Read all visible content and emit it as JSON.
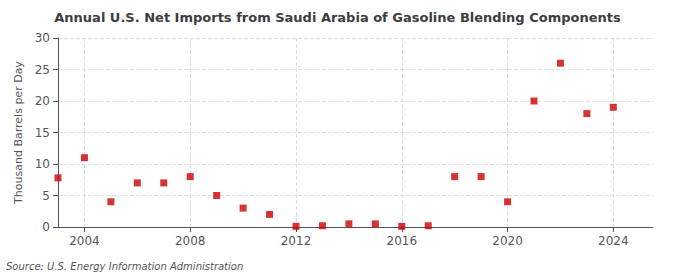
{
  "chart_data": {
    "type": "scatter",
    "title": "Annual U.S. Net Imports from Saudi Arabia of Gasoline Blending Components",
    "ylabel": "Thousand Barrels per Day",
    "annotation": "Source: U.S. Energy Information Administration",
    "x": [
      2003,
      2004,
      2005,
      2006,
      2007,
      2008,
      2009,
      2010,
      2011,
      2012,
      2013,
      2014,
      2015,
      2016,
      2017,
      2018,
      2019,
      2020,
      2021,
      2022,
      2023,
      2024
    ],
    "values": [
      7.8,
      11.0,
      4.0,
      7.0,
      7.0,
      8.0,
      5.0,
      3.0,
      2.0,
      0.1,
      0.2,
      0.5,
      0.5,
      0.1,
      0.2,
      8.0,
      8.0,
      4.0,
      20.0,
      26.0,
      18.0,
      19.0
    ],
    "color": "#cc0000",
    "marker": "square",
    "xlim": [
      2003.0,
      2025.5
    ],
    "xticks": [
      2004,
      2008,
      2012,
      2016,
      2020,
      2024
    ],
    "ylim": [
      0,
      30
    ],
    "yticks": [
      0,
      5,
      10,
      15,
      20,
      25,
      30
    ],
    "grid": true
  }
}
